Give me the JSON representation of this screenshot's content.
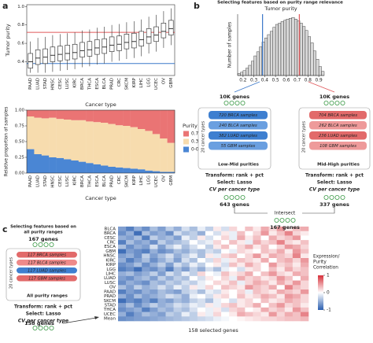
{
  "chart_data": [
    {
      "type": "box",
      "y_label": "Tumor purity",
      "x_label": "Cancer type",
      "categories": [
        "PAAD",
        "LUAD",
        "STAD",
        "HNSC",
        "CESC",
        "LUSC",
        "KIRC",
        "BRCA",
        "THCA",
        "ESCA",
        "BLCA",
        "PRAD",
        "CRC",
        "SKCM",
        "KIRP",
        "LIHC",
        "LGG",
        "UCEC",
        "OV",
        "GBM"
      ],
      "boxes": [
        {
          "min": 0.28,
          "q1": 0.33,
          "median": 0.4,
          "q3": 0.49,
          "max": 0.62
        },
        {
          "min": 0.28,
          "q1": 0.37,
          "median": 0.44,
          "q3": 0.53,
          "max": 0.66
        },
        {
          "min": 0.28,
          "q1": 0.38,
          "median": 0.45,
          "q3": 0.54,
          "max": 0.67
        },
        {
          "min": 0.29,
          "q1": 0.4,
          "median": 0.47,
          "q3": 0.56,
          "max": 0.69
        },
        {
          "min": 0.3,
          "q1": 0.41,
          "median": 0.48,
          "q3": 0.57,
          "max": 0.7
        },
        {
          "min": 0.31,
          "q1": 0.42,
          "median": 0.49,
          "q3": 0.58,
          "max": 0.71
        },
        {
          "min": 0.32,
          "q1": 0.43,
          "median": 0.5,
          "q3": 0.59,
          "max": 0.72
        },
        {
          "min": 0.34,
          "q1": 0.45,
          "median": 0.52,
          "q3": 0.61,
          "max": 0.74
        },
        {
          "min": 0.35,
          "q1": 0.46,
          "median": 0.53,
          "q3": 0.62,
          "max": 0.75
        },
        {
          "min": 0.37,
          "q1": 0.48,
          "median": 0.55,
          "q3": 0.64,
          "max": 0.77
        },
        {
          "min": 0.38,
          "q1": 0.49,
          "median": 0.56,
          "q3": 0.65,
          "max": 0.78
        },
        {
          "min": 0.4,
          "q1": 0.51,
          "median": 0.58,
          "q3": 0.67,
          "max": 0.8
        },
        {
          "min": 0.41,
          "q1": 0.52,
          "median": 0.59,
          "q3": 0.68,
          "max": 0.81
        },
        {
          "min": 0.43,
          "q1": 0.54,
          "median": 0.61,
          "q3": 0.7,
          "max": 0.83
        },
        {
          "min": 0.44,
          "q1": 0.55,
          "median": 0.62,
          "q3": 0.71,
          "max": 0.84
        },
        {
          "min": 0.46,
          "q1": 0.57,
          "median": 0.64,
          "q3": 0.73,
          "max": 0.86
        },
        {
          "min": 0.49,
          "q1": 0.6,
          "median": 0.67,
          "q3": 0.76,
          "max": 0.89
        },
        {
          "min": 0.51,
          "q1": 0.62,
          "median": 0.69,
          "q3": 0.78,
          "max": 0.91
        },
        {
          "min": 0.55,
          "q1": 0.66,
          "median": 0.73,
          "q3": 0.82,
          "max": 0.95
        },
        {
          "min": 0.58,
          "q1": 0.69,
          "median": 0.76,
          "q3": 0.85,
          "max": 0.98
        }
      ],
      "reference_lines": [
        {
          "value": 0.72,
          "color": "#e0575a"
        },
        {
          "value": 0.38,
          "color": "#3b78c9"
        }
      ],
      "ylim": [
        0.25,
        1.02
      ],
      "yticks": [
        0.4,
        0.6,
        0.8,
        {
          "value": 1,
          "label": "1.0"
        }
      ]
    },
    {
      "type": "bar",
      "stacked": true,
      "y_label": "Relative proportion of samples",
      "x_label": "Cancer type",
      "legend_title": "Purity range",
      "categories": [
        "PAAD",
        "LUAD",
        "STAD",
        "HNSC",
        "CESC",
        "LUSC",
        "KIRC",
        "BRCA",
        "THCA",
        "ESCA",
        "BLCA",
        "PRAD",
        "CRC",
        "SKCM",
        "KIRP",
        "LIHC",
        "LGG",
        "UCEC",
        "OV",
        "GBM"
      ],
      "series": [
        {
          "name": "0-0.38",
          "color": "#4a86d4",
          "values": [
            0.38,
            0.3,
            0.28,
            0.25,
            0.24,
            0.22,
            0.2,
            0.18,
            0.16,
            0.14,
            0.12,
            0.1,
            0.09,
            0.08,
            0.07,
            0.06,
            0.04,
            0.03,
            0.02,
            0.02
          ]
        },
        {
          "name": "0.38-0.72",
          "color": "#f7dcae",
          "values": [
            0.52,
            0.58,
            0.59,
            0.63,
            0.62,
            0.63,
            0.64,
            0.66,
            0.66,
            0.67,
            0.68,
            0.68,
            0.67,
            0.67,
            0.66,
            0.64,
            0.63,
            0.59,
            0.53,
            0.46
          ]
        },
        {
          "name": "0.72-1",
          "color": "#ea7474",
          "values": [
            0.1,
            0.12,
            0.13,
            0.12,
            0.14,
            0.15,
            0.16,
            0.16,
            0.18,
            0.19,
            0.2,
            0.22,
            0.24,
            0.25,
            0.27,
            0.3,
            0.33,
            0.38,
            0.45,
            0.52
          ]
        }
      ],
      "ylim": [
        0,
        1
      ],
      "yticks": [
        {
          "value": 0,
          "label": "0.00"
        },
        {
          "value": 0.25,
          "label": "0.25"
        },
        {
          "value": 0.5,
          "label": "0.50"
        },
        {
          "value": 0.75,
          "label": "0.75"
        },
        {
          "value": 1,
          "label": "1.00"
        }
      ]
    },
    {
      "type": "histogram",
      "title": "Tumor purity",
      "y_label": "Number of samples",
      "bins": [
        0.15,
        0.175,
        0.2,
        0.225,
        0.25,
        0.275,
        0.3,
        0.325,
        0.35,
        0.375,
        0.4,
        0.425,
        0.45,
        0.475,
        0.5,
        0.525,
        0.55,
        0.575,
        0.6,
        0.625,
        0.65,
        0.675,
        0.7,
        0.725,
        0.75,
        0.775,
        0.8,
        0.825,
        0.85,
        0.875,
        0.9,
        0.925,
        0.95
      ],
      "values": [
        5,
        8,
        12,
        18,
        25,
        35,
        48,
        58,
        70,
        82,
        92,
        100,
        108,
        118,
        125,
        128,
        132,
        135,
        138,
        140,
        142,
        138,
        134,
        128,
        120,
        110,
        95,
        80,
        60,
        40,
        22,
        10
      ],
      "color": "#d9d9d9",
      "reference_lines": [
        {
          "value": 0.38,
          "color": "#3b78c9"
        },
        {
          "value": 0.72,
          "color": "#e0575a"
        }
      ],
      "xlim": [
        0.15,
        0.95
      ],
      "ylim": [
        0,
        150
      ],
      "xticks": [
        0.2,
        0.3,
        0.4,
        0.5,
        0.6,
        0.7,
        0.8,
        0.9
      ]
    },
    {
      "type": "heatmap",
      "x_label": "158 selected genes",
      "colorbar_title": [
        "Expression/",
        "Purity",
        "Correlation"
      ],
      "rows": [
        "BLCA",
        "BRCA",
        "CESC",
        "CRC",
        "ESCA",
        "GBM",
        "HNSC",
        "KIRC",
        "KIRP",
        "LGG",
        "LIHC",
        "LUAD",
        "LUSC",
        "OV",
        "PAAD",
        "PRAD",
        "SKCM",
        "STAD",
        "THCA",
        "UCEC",
        "Mean"
      ],
      "values": [
        [
          -0.6,
          -0.8,
          -0.5,
          -0.7,
          -0.4,
          -0.6,
          -0.3,
          -0.5,
          -0.2,
          -0.4,
          -0.1,
          -0.3,
          0.1,
          -0.2,
          0.2,
          0,
          0.3,
          0.1,
          0.4,
          0.2,
          0.5,
          0.1,
          0.3,
          0.4
        ],
        [
          -0.7,
          -0.5,
          -0.9,
          -0.4,
          -0.6,
          -0.5,
          -0.7,
          -0.2,
          -0.4,
          -0.3,
          -0.5,
          0,
          -0.2,
          0.1,
          -0.1,
          0.3,
          0,
          0.2,
          0.5,
          0.1,
          0.3,
          0.6,
          0.2,
          0.1
        ],
        [
          -0.5,
          -0.6,
          -0.4,
          -0.8,
          -0.3,
          -0.5,
          -0.4,
          -0.6,
          -0.1,
          -0.3,
          0.1,
          -0.2,
          0,
          0.2,
          -0.1,
          0.4,
          0.1,
          0.3,
          0,
          0.4,
          0.2,
          0.3,
          0.5,
          0
        ],
        [
          -0.8,
          -0.4,
          -0.6,
          -0.5,
          -0.7,
          -0.3,
          -0.5,
          -0.4,
          -0.3,
          0,
          -0.2,
          -0.1,
          0.2,
          0,
          0.3,
          0.1,
          -0.1,
          0.4,
          0.2,
          0.3,
          0.6,
          0.2,
          0.1,
          0.3
        ],
        [
          -0.4,
          -0.7,
          -0.5,
          -0.6,
          -0.2,
          -0.6,
          -0.3,
          -0.1,
          -0.4,
          -0.2,
          0,
          -0.3,
          0.1,
          0.3,
          0,
          0.2,
          0.4,
          0.1,
          0.3,
          0,
          0.2,
          0.5,
          0.4,
          0.2
        ],
        [
          -0.9,
          -0.6,
          -0.7,
          -0.8,
          -0.5,
          -0.7,
          -0.6,
          -0.4,
          -0.5,
          -0.3,
          -0.4,
          -0.2,
          -0.3,
          0,
          -0.1,
          0.2,
          0.1,
          0,
          0.3,
          0.2,
          0.4,
          0.1,
          0.5,
          0.3
        ],
        [
          -0.6,
          -0.5,
          -0.7,
          -0.3,
          -0.6,
          -0.4,
          -0.2,
          -0.5,
          -0.3,
          -0.1,
          -0.4,
          0.1,
          -0.1,
          0.2,
          0.3,
          0,
          0.2,
          0.5,
          0.1,
          0.4,
          0.3,
          0.2,
          0.6,
          0.1
        ],
        [
          -0.5,
          -0.8,
          -0.6,
          -0.4,
          -0.7,
          -0.5,
          -0.3,
          -0.6,
          -0.2,
          -0.4,
          0,
          -0.2,
          0.2,
          -0.1,
          0.1,
          0.3,
          0.2,
          0.1,
          0.4,
          0,
          0.3,
          0.4,
          0.2,
          0.5
        ],
        [
          -0.7,
          -0.6,
          -0.4,
          -0.7,
          -0.5,
          -0.3,
          -0.6,
          -0.2,
          -0.4,
          -0.1,
          -0.3,
          0,
          0.1,
          -0.2,
          0.3,
          0.1,
          0.4,
          0.2,
          0,
          0.5,
          0.2,
          0.3,
          0.1,
          0.4
        ],
        [
          -0.8,
          -0.7,
          -0.9,
          -0.6,
          -0.7,
          -0.5,
          -0.8,
          -0.4,
          -0.6,
          -0.3,
          -0.5,
          -0.2,
          -0.4,
          -0.1,
          0,
          -0.2,
          0.1,
          0.2,
          0,
          0.3,
          0.1,
          0.4,
          0.2,
          0.3
        ],
        [
          -0.5,
          -0.4,
          -0.6,
          -0.5,
          -0.3,
          -0.6,
          -0.2,
          -0.4,
          -0.1,
          -0.3,
          0.2,
          0,
          -0.1,
          0.3,
          0.1,
          0.2,
          0.4,
          0,
          0.3,
          0.5,
          0.2,
          0.1,
          0.4,
          0.3
        ],
        [
          -0.6,
          -0.7,
          -0.5,
          -0.4,
          -0.6,
          -0.3,
          -0.5,
          -0.3,
          -0.4,
          0,
          -0.2,
          0.1,
          0,
          0.2,
          -0.1,
          0.4,
          0.2,
          0.3,
          0.1,
          0.2,
          0.5,
          0.3,
          0,
          0.4
        ],
        [
          -0.7,
          -0.5,
          -0.6,
          -0.7,
          -0.4,
          -0.5,
          -0.3,
          -0.4,
          -0.2,
          -0.3,
          -0.1,
          0,
          0.2,
          0.1,
          0.3,
          -0.1,
          0.2,
          0.4,
          0.3,
          0.1,
          0.4,
          0.2,
          0.5,
          0.2
        ],
        [
          -0.4,
          -0.6,
          -0.3,
          -0.5,
          -0.4,
          -0.2,
          -0.4,
          -0.1,
          -0.3,
          0.1,
          -0.1,
          0.2,
          0,
          0.3,
          0.2,
          0.1,
          0.5,
          0.3,
          0.2,
          0.4,
          0,
          0.6,
          0.3,
          0.2
        ],
        [
          -0.8,
          -0.6,
          -0.7,
          -0.5,
          -0.6,
          -0.4,
          -0.5,
          -0.6,
          -0.3,
          -0.2,
          -0.4,
          -0.1,
          -0.2,
          0.1,
          0,
          0.2,
          -0.1,
          0.3,
          0.2,
          0.1,
          0.4,
          0.3,
          0.2,
          0.5
        ],
        [
          -0.5,
          -0.7,
          -0.4,
          -0.6,
          -0.5,
          -0.4,
          -0.2,
          -0.3,
          -0.5,
          -0.1,
          0,
          -0.2,
          0.1,
          0.2,
          0,
          0.3,
          0.1,
          0.2,
          0.4,
          0.3,
          0.1,
          0.5,
          0.4,
          0.2
        ],
        [
          -0.9,
          -0.7,
          -0.8,
          -0.6,
          -0.8,
          -0.5,
          -0.6,
          -0.4,
          -0.5,
          -0.3,
          -0.2,
          -0.4,
          -0.1,
          0,
          -0.2,
          0.1,
          0.2,
          0,
          0.3,
          0.1,
          0.2,
          0.4,
          0.3,
          0.2
        ],
        [
          -0.6,
          -0.4,
          -0.7,
          -0.5,
          -0.3,
          -0.5,
          -0.4,
          -0.2,
          -0.3,
          -0.1,
          -0.2,
          0.1,
          -0.1,
          0.2,
          0.3,
          0.1,
          0.2,
          0.4,
          0,
          0.3,
          0.5,
          0.2,
          0.3,
          0.1
        ],
        [
          -0.7,
          -0.6,
          -0.5,
          -0.8,
          -0.6,
          -0.4,
          -0.5,
          -0.3,
          -0.4,
          -0.2,
          0,
          -0.1,
          0.1,
          -0.2,
          0.2,
          0.3,
          0,
          0.1,
          0.4,
          0.2,
          0.3,
          0.1,
          0.5,
          0.3
        ],
        [
          -0.5,
          -0.8,
          -0.6,
          -0.4,
          -0.5,
          -0.6,
          -0.3,
          -0.4,
          -0.1,
          -0.3,
          0.1,
          -0.1,
          0.2,
          0,
          0.1,
          0.4,
          0.3,
          0.2,
          0.1,
          0.5,
          0.2,
          0.4,
          0.3,
          0.6
        ],
        [
          -0.7,
          -0.65,
          -0.6,
          -0.6,
          -0.55,
          -0.5,
          -0.45,
          -0.4,
          -0.35,
          -0.3,
          -0.25,
          -0.2,
          -0.1,
          -0.05,
          0,
          0.05,
          0.1,
          0.15,
          0.2,
          0.2,
          0.25,
          0.3,
          0.3,
          0.35
        ]
      ],
      "clim": [
        -1,
        1
      ],
      "cticks": [
        1,
        0,
        -1
      ]
    }
  ],
  "panel_labels": [
    "a",
    "b",
    "c"
  ],
  "diagram_b": {
    "title": "Selecting features based on purity range relevance",
    "left": {
      "genes": "10K genes",
      "types": "20 cancer types",
      "samples": [
        "720 BRCA samples",
        "240 BLCA samples",
        "382 LUAD samples",
        "55 GBM samples"
      ],
      "range": "Low-Mid purities",
      "steps": [
        "Transform: rank + pct",
        "Select: Lasso",
        "CV per cancer type"
      ],
      "result": "643 genes"
    },
    "right": {
      "genes": "10K genes",
      "types": "20 cancer types",
      "samples": [
        "704 BRCA samples",
        "262 BLCA samples",
        "236 LUAD samples",
        "108 GBM samples"
      ],
      "range": "Mid-High purities",
      "steps": [
        "Transform: rank + pct",
        "Select: Lasso",
        "CV per cancer type"
      ],
      "result": "337 genes"
    },
    "intersect": "Intersect",
    "result": "167 genes"
  },
  "diagram_c": {
    "title": [
      "Selecting features based on",
      "all purity ranges"
    ],
    "genes": "167 genes",
    "types": "20 cancer types",
    "samples": [
      "117 BRCA samples",
      "117 BLCA samples",
      "117 LUAD samples",
      "117 GBM samples"
    ],
    "range": "All purity ranges",
    "steps": [
      "Transform: rank + pct",
      "Select: Lasso",
      "CV per cancer type"
    ],
    "result": "158 genes"
  }
}
